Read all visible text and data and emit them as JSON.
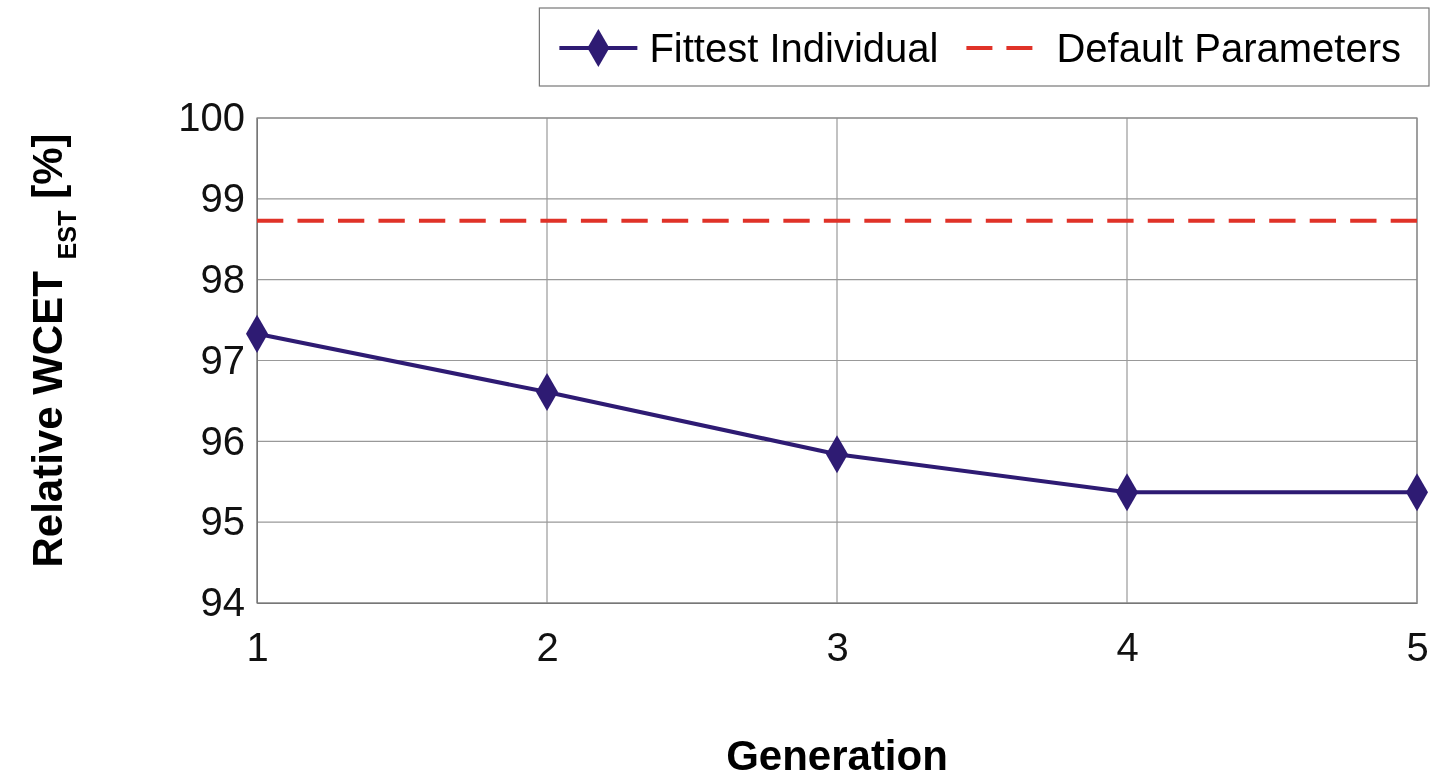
{
  "chart_data": {
    "type": "line",
    "xlabel": "Generation",
    "ylabel": "Relative WCET $_{EST}$ [%]",
    "x": [
      1,
      2,
      3,
      4,
      5
    ],
    "xlim": [
      1,
      5
    ],
    "xticks": [
      1,
      2,
      3,
      4,
      5
    ],
    "ylim": [
      94,
      100
    ],
    "yticks": [
      94,
      95,
      96,
      97,
      98,
      99,
      100
    ],
    "grid": true,
    "legend": "top right",
    "series": [
      {
        "name": "Fittest Individual",
        "color": "#2e1b73",
        "values": [
          97.33,
          96.61,
          95.84,
          95.37,
          95.37
        ],
        "marker": "diamond",
        "line_style": "solid"
      },
      {
        "name": "Default Parameters",
        "color": "#e03228",
        "values": [
          98.73,
          98.73,
          98.73,
          98.73,
          98.73
        ],
        "marker": "none",
        "line_style": "dashed"
      }
    ]
  }
}
